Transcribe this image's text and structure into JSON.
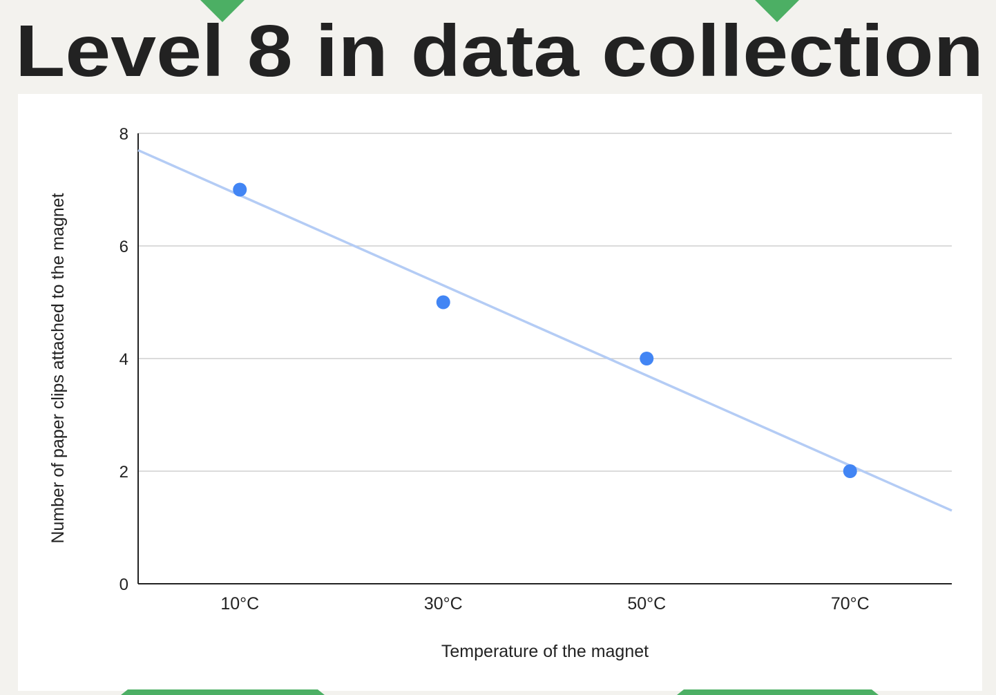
{
  "chart_data": {
    "type": "scatter",
    "title": "Level 8 in data collection",
    "categories": [
      "10°C",
      "30°C",
      "50°C",
      "70°C"
    ],
    "values": [
      7,
      5,
      4,
      2
    ],
    "color": "#4285f4",
    "trendline": true,
    "trendline_color": "#b4ccf5",
    "xlabel": "Temperature of the magnet",
    "ylabel": "Number of paper clips attached to the magnet",
    "ylim": [
      0,
      8
    ],
    "yticks": [
      0,
      2,
      4,
      6,
      8
    ],
    "grid": true
  }
}
